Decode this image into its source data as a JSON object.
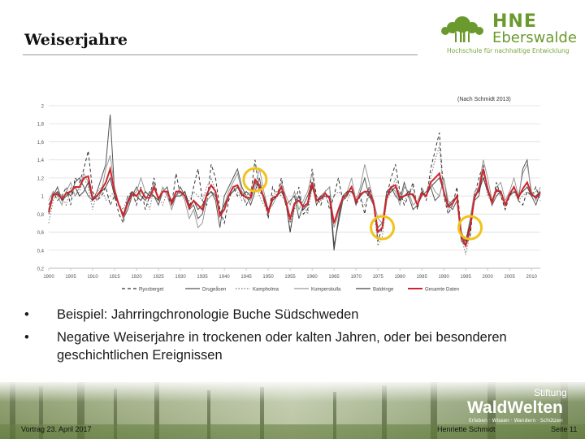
{
  "slide": {
    "title": "Weiserjahre",
    "logo": {
      "line1": "HNE",
      "line2": "Eberswalde",
      "sub": "Hochschule für nachhaltige Entwicklung"
    },
    "bullets": [
      "Beispiel: Jahrringchronologie Buche Südschweden",
      "Negative Weiserjahre in trockenen oder kalten Jahren, oder bei besonderen geschichtlichen Ereignissen"
    ],
    "bullet_symbol": "•",
    "footer": {
      "left": "Vortrag 23. April 2017",
      "author": "Henriette Schmidt",
      "page": "Seite 11"
    },
    "waldwelten": {
      "stiftung": "Stiftung",
      "name": "WaldWelten",
      "sub": "Erleben · Wissen · Wandern · Schützen"
    }
  },
  "chart_data": {
    "type": "line",
    "annotation": "(Nach Schmidt 2013)",
    "xlim": [
      1900,
      2012
    ],
    "ylim": [
      0.2,
      2.0
    ],
    "yticks": [
      "0,2",
      "0,4",
      "0,6",
      "0,8",
      "1",
      "1,2",
      "1,4",
      "1,6",
      "1,8",
      "2"
    ],
    "xticks": [
      "1900",
      "1905",
      "1910",
      "1915",
      "1920",
      "1925",
      "1930",
      "1935",
      "1940",
      "1945",
      "1950",
      "1955",
      "1960",
      "1965",
      "1970",
      "1975",
      "1980",
      "1985",
      "1990",
      "1995",
      "2000",
      "2005",
      "2010"
    ],
    "grid": true,
    "legend_position": "bottom",
    "highlighted_years": [
      1947,
      1976,
      1996
    ],
    "highlight_color": "#f2c21b",
    "series": [
      {
        "name": "Ryssberget",
        "color": "#333333",
        "dash": "4,3",
        "values": [
          0.85,
          1.05,
          0.95,
          1.0,
          1.1,
          0.9,
          1.2,
          1.15,
          1.3,
          1.5,
          1.05,
          0.95,
          1.0,
          1.1,
          0.9,
          1.0,
          0.8,
          0.7,
          1.0,
          1.05,
          0.9,
          1.1,
          0.85,
          1.0,
          1.2,
          0.95,
          1.1,
          1.0,
          0.9,
          1.25,
          1.0,
          1.05,
          0.85,
          1.1,
          1.3,
          0.95,
          0.9,
          1.35,
          1.2,
          0.85,
          0.7,
          0.95,
          1.1,
          1.0,
          1.05,
          0.9,
          1.0,
          1.4,
          1.05,
          1.0,
          0.75,
          1.1,
          1.0,
          1.2,
          0.95,
          0.6,
          0.9,
          1.1,
          0.8,
          0.85,
          1.3,
          1.0,
          0.9,
          1.05,
          0.85,
          1.0,
          1.2,
          0.95,
          1.05,
          1.1,
          0.9,
          1.0,
          0.8,
          1.1,
          0.95,
          0.5,
          0.65,
          1.0,
          1.2,
          1.35,
          1.05,
          0.9,
          1.0,
          1.15,
          0.85,
          1.1,
          0.95,
          1.3,
          1.5,
          1.7,
          1.0,
          0.8,
          0.9,
          1.1,
          0.6,
          0.45,
          0.55,
          1.0,
          1.2,
          1.35,
          1.05,
          0.9,
          1.15,
          1.0,
          0.85,
          1.0,
          1.1,
          0.95,
          0.9,
          1.05,
          1.0,
          1.1,
          0.95
        ]
      },
      {
        "name": "Drugeåsen",
        "color": "#555555",
        "dash": "",
        "values": [
          0.9,
          1.0,
          1.1,
          0.95,
          1.05,
          1.0,
          1.15,
          1.2,
          1.1,
          1.0,
          0.95,
          1.05,
          1.2,
          1.35,
          1.9,
          1.05,
          0.9,
          0.75,
          0.85,
          1.0,
          1.1,
          1.0,
          0.95,
          1.05,
          1.0,
          0.9,
          1.05,
          1.1,
          0.9,
          1.0,
          1.1,
          1.0,
          0.85,
          0.9,
          0.75,
          0.8,
          1.0,
          1.05,
          0.95,
          0.65,
          1.0,
          1.1,
          1.2,
          1.3,
          1.1,
          1.0,
          0.9,
          1.05,
          1.2,
          0.95,
          0.8,
          0.95,
          1.0,
          1.1,
          0.9,
          0.95,
          1.0,
          0.75,
          0.9,
          1.0,
          1.15,
          0.9,
          1.0,
          1.05,
          1.1,
          0.45,
          0.7,
          0.95,
          1.0,
          1.1,
          0.9,
          1.05,
          1.2,
          1.0,
          0.9,
          0.65,
          0.7,
          1.05,
          1.1,
          1.0,
          0.95,
          1.15,
          1.0,
          0.85,
          0.9,
          1.0,
          1.05,
          1.1,
          0.95,
          1.0,
          1.2,
          0.9,
          0.85,
          0.95,
          0.5,
          0.45,
          0.7,
          0.95,
          1.0,
          1.3,
          1.1,
          0.9,
          1.0,
          1.05,
          0.9,
          1.0,
          1.1,
          0.95,
          1.3,
          1.4,
          1.0,
          0.9,
          1.05
        ]
      },
      {
        "name": "Kampholma",
        "color": "#777777",
        "dash": "1.5,2",
        "values": [
          0.7,
          0.95,
          1.05,
          1.0,
          0.9,
          1.1,
          1.0,
          1.05,
          1.2,
          1.1,
          0.85,
          1.05,
          1.1,
          0.95,
          1.0,
          1.05,
          0.9,
          0.85,
          1.0,
          1.0,
          0.95,
          1.05,
          1.0,
          0.85,
          1.1,
          1.0,
          0.9,
          1.05,
          0.95,
          1.0,
          1.1,
          1.0,
          0.95,
          1.05,
          1.0,
          0.95,
          1.1,
          1.2,
          1.05,
          0.8,
          0.85,
          1.0,
          1.1,
          1.05,
          0.95,
          1.0,
          1.05,
          1.2,
          1.0,
          0.9,
          0.85,
          1.0,
          1.05,
          1.0,
          0.95,
          0.7,
          0.85,
          1.0,
          0.9,
          0.8,
          1.1,
          1.0,
          0.95,
          1.0,
          0.9,
          1.0,
          1.05,
          1.0,
          0.95,
          1.05,
          1.0,
          0.95,
          0.9,
          1.0,
          0.9,
          0.45,
          0.55,
          0.95,
          1.05,
          1.2,
          1.0,
          0.95,
          1.0,
          1.1,
          0.9,
          1.0,
          1.05,
          1.2,
          1.4,
          1.55,
          1.0,
          0.85,
          0.9,
          1.0,
          0.55,
          0.35,
          0.6,
          1.0,
          1.1,
          1.25,
          1.0,
          0.95,
          1.05,
          1.0,
          0.9,
          1.0,
          1.05,
          0.95,
          1.0,
          1.05,
          1.0,
          1.05,
          1.0
        ]
      },
      {
        "name": "Komperskulla",
        "color": "#999999",
        "dash": "",
        "values": [
          0.95,
          1.05,
          1.0,
          0.9,
          1.05,
          1.15,
          1.0,
          1.1,
          1.25,
          1.15,
          1.0,
          0.95,
          1.05,
          1.3,
          1.45,
          1.1,
          0.9,
          0.75,
          0.9,
          1.0,
          1.05,
          1.2,
          1.05,
          1.0,
          1.15,
          0.95,
          1.1,
          1.0,
          0.85,
          1.0,
          1.05,
          0.95,
          0.75,
          0.85,
          0.65,
          0.7,
          0.95,
          1.0,
          1.05,
          0.8,
          0.9,
          1.05,
          1.15,
          1.25,
          1.05,
          1.0,
          0.95,
          1.1,
          1.3,
          1.05,
          0.85,
          0.9,
          1.0,
          1.15,
          1.0,
          0.9,
          1.05,
          0.85,
          0.95,
          1.05,
          1.25,
          0.95,
          1.0,
          1.05,
          1.1,
          0.65,
          0.8,
          1.0,
          1.05,
          1.2,
          0.95,
          1.1,
          1.35,
          1.15,
          0.95,
          0.75,
          0.7,
          1.0,
          1.1,
          1.05,
          0.9,
          1.1,
          1.05,
          0.9,
          0.95,
          1.05,
          1.0,
          1.15,
          1.05,
          1.0,
          1.2,
          0.95,
          0.9,
          1.0,
          0.55,
          0.5,
          0.75,
          1.05,
          1.1,
          1.4,
          1.2,
          0.95,
          1.1,
          1.15,
          0.95,
          1.05,
          1.2,
          1.0,
          1.25,
          1.35,
          1.05,
          0.95,
          1.1
        ]
      },
      {
        "name": "Baldringe",
        "color": "#444444",
        "dash": "",
        "values": [
          0.8,
          1.0,
          1.05,
          0.95,
          1.0,
          1.05,
          1.1,
          1.0,
          1.05,
          1.15,
          0.95,
          1.0,
          1.05,
          1.1,
          1.2,
          1.0,
          0.9,
          0.8,
          0.95,
          1.05,
          1.0,
          0.95,
          1.05,
          1.0,
          1.0,
          0.95,
          1.05,
          1.05,
          0.95,
          1.0,
          1.0,
          1.05,
          0.9,
          0.95,
          0.85,
          0.9,
          1.0,
          1.05,
          1.0,
          0.8,
          0.9,
          1.0,
          1.05,
          1.1,
          1.0,
          1.05,
          1.0,
          1.15,
          1.1,
          1.0,
          0.85,
          0.95,
          1.0,
          1.05,
          0.95,
          0.6,
          0.9,
          1.0,
          0.85,
          0.9,
          1.1,
          0.95,
          1.0,
          1.0,
          1.0,
          0.4,
          0.75,
          1.0,
          1.05,
          1.05,
          0.95,
          1.0,
          1.05,
          1.0,
          0.95,
          0.6,
          0.65,
          1.0,
          1.05,
          1.1,
          0.95,
          1.0,
          1.05,
          1.0,
          0.9,
          1.05,
          1.0,
          1.1,
          1.15,
          1.2,
          1.05,
          0.9,
          0.95,
          1.0,
          0.6,
          0.5,
          0.7,
          1.0,
          1.05,
          1.2,
          1.05,
          0.95,
          1.05,
          1.05,
          0.9,
          1.0,
          1.05,
          1.0,
          1.05,
          1.1,
          1.0,
          1.0,
          1.05
        ]
      },
      {
        "name": "Gesamte Daten",
        "color": "#d0242c",
        "dash": "",
        "width": 2,
        "values": [
          0.82,
          1.02,
          1.02,
          0.97,
          1.03,
          1.05,
          1.1,
          1.1,
          1.2,
          1.22,
          0.97,
          1.0,
          1.07,
          1.15,
          1.3,
          1.05,
          0.9,
          0.78,
          0.93,
          1.02,
          1.0,
          1.07,
          0.98,
          0.98,
          1.1,
          0.97,
          1.05,
          1.05,
          0.92,
          1.05,
          1.05,
          1.0,
          0.87,
          0.95,
          0.9,
          0.85,
          1.02,
          1.12,
          1.05,
          0.78,
          0.85,
          1.0,
          1.1,
          1.12,
          1.02,
          0.98,
          0.98,
          1.18,
          1.12,
          0.98,
          0.82,
          0.98,
          1.0,
          1.1,
          0.95,
          0.75,
          0.92,
          0.95,
          0.88,
          0.92,
          1.15,
          0.95,
          0.97,
          1.03,
          0.97,
          0.7,
          0.85,
          0.98,
          1.02,
          1.1,
          0.93,
          1.02,
          1.05,
          1.05,
          0.93,
          0.6,
          0.65,
          0.98,
          1.1,
          1.12,
          0.98,
          1.0,
          1.02,
          1.02,
          0.9,
          1.03,
          1.0,
          1.15,
          1.2,
          1.25,
          1.05,
          0.88,
          0.92,
          1.0,
          0.55,
          0.45,
          0.65,
          0.98,
          1.08,
          1.3,
          1.08,
          0.93,
          1.07,
          1.05,
          0.9,
          1.02,
          1.1,
          0.98,
          1.08,
          1.15,
          1.02,
          0.98,
          1.03
        ]
      }
    ]
  }
}
